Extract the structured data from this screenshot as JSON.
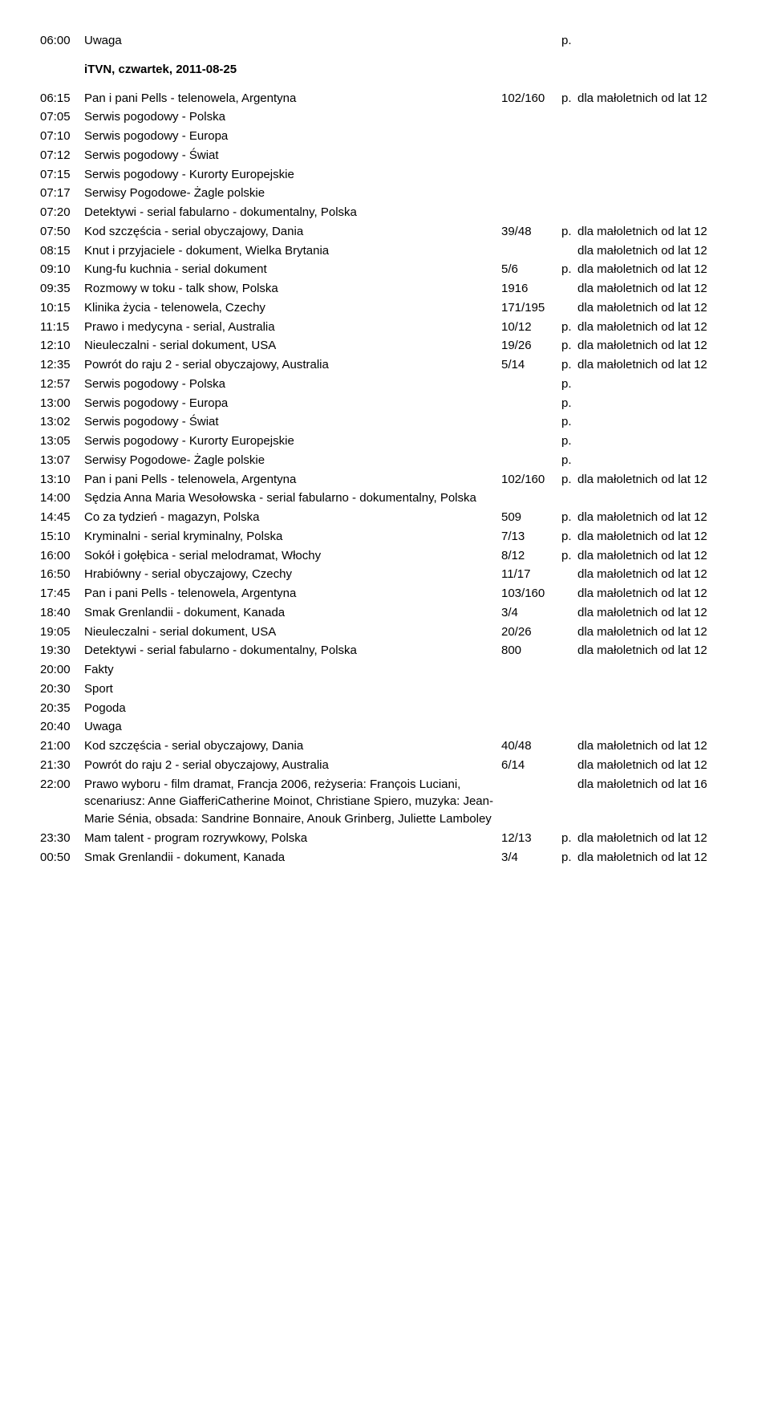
{
  "header": {
    "time": "06:00",
    "title": "Uwaga",
    "pmark": "p."
  },
  "section_title": "iTVN, czwartek, 2011-08-25",
  "rows": [
    {
      "time": "06:15",
      "title": "Pan i pani Pells - telenowela, Argentyna",
      "ep": "102/160",
      "pmark": "p.",
      "rating": "dla małoletnich od lat 12"
    },
    {
      "time": "07:05",
      "title": "Serwis pogodowy - Polska"
    },
    {
      "time": "07:10",
      "title": "Serwis pogodowy - Europa"
    },
    {
      "time": "07:12",
      "title": "Serwis pogodowy - Świat"
    },
    {
      "time": "07:15",
      "title": "Serwis pogodowy - Kurorty Europejskie"
    },
    {
      "time": "07:17",
      "title": "Serwisy Pogodowe- Żagle polskie"
    },
    {
      "time": "07:20",
      "title": "Detektywi - serial fabularno - dokumentalny, Polska"
    },
    {
      "time": "07:50",
      "title": "Kod szczęścia - serial obyczajowy, Dania",
      "ep": "39/48",
      "pmark": "p.",
      "rating": "dla małoletnich od lat 12"
    },
    {
      "time": "08:15",
      "title": "Knut i przyjaciele - dokument, Wielka Brytania",
      "rating": "dla małoletnich od lat 12"
    },
    {
      "time": "09:10",
      "title": "Kung-fu kuchnia - serial dokument",
      "ep": "5/6",
      "pmark": "p.",
      "rating": "dla małoletnich od lat 12"
    },
    {
      "time": "09:35",
      "title": "Rozmowy w toku - talk show, Polska",
      "ep": "1916",
      "rating": "dla małoletnich od lat 12"
    },
    {
      "time": "10:15",
      "title": "Klinika życia - telenowela, Czechy",
      "ep": "171/195",
      "rating": "dla małoletnich od lat 12"
    },
    {
      "time": "11:15",
      "title": "Prawo i medycyna - serial, Australia",
      "ep": "10/12",
      "pmark": "p.",
      "rating": "dla małoletnich od lat 12"
    },
    {
      "time": "12:10",
      "title": "Nieuleczalni - serial dokument, USA",
      "ep": "19/26",
      "pmark": "p.",
      "rating": "dla małoletnich od lat 12"
    },
    {
      "time": "12:35",
      "title": "Powrót do raju 2 - serial obyczajowy, Australia",
      "ep": "5/14",
      "pmark": "p.",
      "rating": "dla małoletnich od lat 12"
    },
    {
      "time": "12:57",
      "title": "Serwis pogodowy - Polska",
      "pmark": "p."
    },
    {
      "time": "13:00",
      "title": "Serwis pogodowy - Europa",
      "pmark": "p."
    },
    {
      "time": "13:02",
      "title": "Serwis pogodowy - Świat",
      "pmark": "p."
    },
    {
      "time": "13:05",
      "title": "Serwis pogodowy - Kurorty Europejskie",
      "pmark": "p."
    },
    {
      "time": "13:07",
      "title": "Serwisy Pogodowe- Żagle polskie",
      "pmark": "p."
    },
    {
      "time": "13:10",
      "title": "Pan i pani Pells - telenowela, Argentyna",
      "ep": "102/160",
      "pmark": "p.",
      "rating": "dla małoletnich od lat 12"
    },
    {
      "time": "14:00",
      "title": "Sędzia Anna Maria Wesołowska - serial fabularno - dokumentalny, Polska"
    },
    {
      "time": "14:45",
      "title": "Co za tydzień - magazyn, Polska",
      "ep": "509",
      "pmark": "p.",
      "rating": "dla małoletnich od lat 12"
    },
    {
      "time": "15:10",
      "title": "Kryminalni - serial kryminalny, Polska",
      "ep": "7/13",
      "pmark": "p.",
      "rating": "dla małoletnich od lat 12"
    },
    {
      "time": "16:00",
      "title": "Sokół i gołębica - serial melodramat, Włochy",
      "ep": "8/12",
      "pmark": "p.",
      "rating": "dla małoletnich od lat 12"
    },
    {
      "time": "16:50",
      "title": "Hrabiówny - serial obyczajowy, Czechy",
      "ep": "11/17",
      "rating": "dla małoletnich od lat 12"
    },
    {
      "time": "17:45",
      "title": "Pan i pani Pells - telenowela, Argentyna",
      "ep": "103/160",
      "rating": "dla małoletnich od lat 12"
    },
    {
      "time": "18:40",
      "title": "Smak Grenlandii - dokument, Kanada",
      "ep": "3/4",
      "rating": "dla małoletnich od lat 12"
    },
    {
      "time": "19:05",
      "title": "Nieuleczalni - serial dokument, USA",
      "ep": "20/26",
      "rating": "dla małoletnich od lat 12"
    },
    {
      "time": "19:30",
      "title": "Detektywi - serial fabularno - dokumentalny, Polska",
      "ep": "800",
      "rating": "dla małoletnich od lat 12"
    },
    {
      "time": "20:00",
      "title": "Fakty"
    },
    {
      "time": "20:30",
      "title": "Sport"
    },
    {
      "time": "20:35",
      "title": "Pogoda"
    },
    {
      "time": "20:40",
      "title": "Uwaga"
    },
    {
      "time": "21:00",
      "title": "Kod szczęścia - serial obyczajowy, Dania",
      "ep": "40/48",
      "rating": "dla małoletnich od lat 12"
    },
    {
      "time": "21:30",
      "title": "Powrót do raju 2 - serial obyczajowy, Australia",
      "ep": "6/14",
      "rating": "dla małoletnich od lat 12"
    },
    {
      "time": "22:00",
      "title": "Prawo wyboru - film dramat, Francja 2006, reżyseria: François Luciani, scenariusz: Anne GiafferiCatherine Moinot, Christiane Spiero, muzyka: Jean-Marie Sénia, obsada: Sandrine Bonnaire, Anouk Grinberg, Juliette Lamboley",
      "rating": "dla małoletnich od lat 16"
    },
    {
      "time": "23:30",
      "title": "Mam talent - program rozrywkowy, Polska",
      "ep": "12/13",
      "pmark": "p.",
      "rating": "dla małoletnich od lat 12"
    },
    {
      "time": "00:50",
      "title": "Smak Grenlandii - dokument, Kanada",
      "ep": "3/4",
      "pmark": "p.",
      "rating": "dla małoletnich od lat 12"
    }
  ]
}
